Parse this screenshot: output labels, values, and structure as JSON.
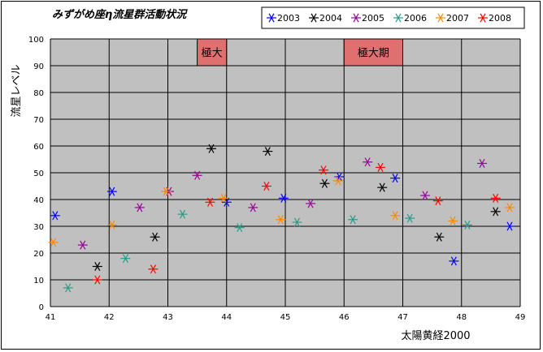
{
  "chart_data": {
    "type": "scatter",
    "title": "みずがめ座η流星群活動状況",
    "xlabel": "太陽黄経2000",
    "ylabel": "流星レベル",
    "xlim": [
      41,
      49
    ],
    "ylim": [
      0,
      100
    ],
    "x_ticks": [
      "41",
      "42",
      "43",
      "44",
      "45",
      "46",
      "47",
      "48",
      "49"
    ],
    "y_ticks": [
      "0",
      "10",
      "20",
      "30",
      "40",
      "50",
      "60",
      "70",
      "80",
      "90",
      "100"
    ],
    "grid": true,
    "plot_background": "#c0c0c0",
    "legend_position": "top",
    "annotations": [
      {
        "text": "極大",
        "x_from": 43.5,
        "x_to": 44.0,
        "y_from": 90,
        "y_to": 100,
        "color": "#e07070"
      },
      {
        "text": "極大期",
        "x_from": 46.0,
        "x_to": 47.0,
        "y_from": 90,
        "y_to": 100,
        "color": "#e07070"
      }
    ],
    "series": [
      {
        "name": "2003",
        "color": "#0000ff",
        "points": [
          [
            41.08,
            34
          ],
          [
            42.05,
            43
          ],
          [
            44.0,
            39
          ],
          [
            44.97,
            40.5
          ],
          [
            45.92,
            48.5
          ],
          [
            46.87,
            48
          ],
          [
            47.87,
            17
          ],
          [
            48.82,
            30
          ]
        ]
      },
      {
        "name": "2004",
        "color": "#000000",
        "points": [
          [
            41.8,
            15
          ],
          [
            42.78,
            26
          ],
          [
            43.74,
            59
          ],
          [
            44.7,
            58
          ],
          [
            45.67,
            46
          ],
          [
            46.65,
            44.5
          ],
          [
            47.62,
            26
          ],
          [
            48.58,
            35.5
          ]
        ]
      },
      {
        "name": "2005",
        "color": "#990099",
        "points": [
          [
            41.55,
            23
          ],
          [
            42.52,
            37
          ],
          [
            43.02,
            43
          ],
          [
            43.5,
            49
          ],
          [
            44.45,
            37
          ],
          [
            45.43,
            38.5
          ],
          [
            46.4,
            54
          ],
          [
            47.38,
            41.5
          ],
          [
            48.35,
            53.5
          ]
        ]
      },
      {
        "name": "2006",
        "color": "#2a9a8a",
        "points": [
          [
            41.3,
            7
          ],
          [
            42.28,
            18
          ],
          [
            43.25,
            34.5
          ],
          [
            44.22,
            29.5
          ],
          [
            45.2,
            31.5
          ],
          [
            46.15,
            32.5
          ],
          [
            47.12,
            33
          ],
          [
            48.1,
            30.5
          ]
        ]
      },
      {
        "name": "2007",
        "color": "#ff8800",
        "points": [
          [
            41.05,
            24
          ],
          [
            42.05,
            30.5
          ],
          [
            42.97,
            43
          ],
          [
            43.95,
            40.5
          ],
          [
            44.92,
            32.5
          ],
          [
            45.9,
            47
          ],
          [
            46.87,
            34
          ],
          [
            47.85,
            32
          ],
          [
            48.82,
            37
          ]
        ]
      },
      {
        "name": "2008",
        "color": "#ff0000",
        "points": [
          [
            41.8,
            10
          ],
          [
            42.75,
            14
          ],
          [
            43.72,
            39
          ],
          [
            44.68,
            45
          ],
          [
            45.65,
            51
          ],
          [
            46.62,
            52
          ],
          [
            47.6,
            39.5
          ],
          [
            48.58,
            40.5
          ]
        ]
      }
    ]
  }
}
